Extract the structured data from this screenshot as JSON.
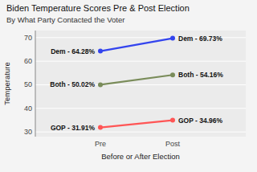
{
  "chart_data": {
    "type": "line",
    "title": "Biden Temperature Scores Pre & Post Election",
    "subtitle": "By What Party Contacted the Voter",
    "xlabel": "Before or After Election",
    "ylabel": "Temperature",
    "categories": [
      "Pre",
      "Post"
    ],
    "series": [
      {
        "color": "#3344ee",
        "values": [
          64.28,
          69.73
        ],
        "value_labels": [
          "Dem - 64.28%",
          "Dem - 69.73%"
        ]
      },
      {
        "color": "#7a8c5a",
        "values": [
          50.02,
          54.16
        ],
        "value_labels": [
          "Both - 50.02%",
          "Both - 54.16%"
        ]
      },
      {
        "color": "#ff5555",
        "values": [
          31.91,
          34.96
        ],
        "value_labels": [
          "GOP - 31.91%",
          "GOP - 34.96%"
        ]
      }
    ],
    "ylim": [
      28,
      73
    ],
    "yticks": [
      30,
      40,
      50,
      60,
      70
    ],
    "grid": true,
    "marker": "circle",
    "data_labels": true
  }
}
